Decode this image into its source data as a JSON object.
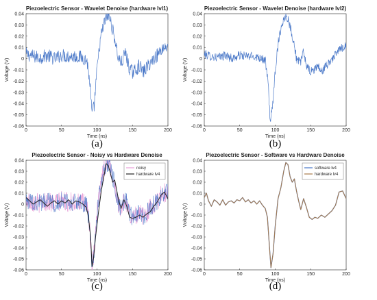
{
  "chart_data": [
    {
      "panel_label": "(a)",
      "type": "line",
      "title": "Piezoelectric Sensor - Wavelet Denoise (hardware lvl1)",
      "xlabel": "Time (ns)",
      "ylabel": "Voltage (V)",
      "xlim": [
        0,
        200
      ],
      "ylim": [
        -0.06,
        0.04
      ],
      "xticks": [
        0,
        50,
        100,
        150,
        200
      ],
      "yticks": [
        -0.06,
        -0.05,
        -0.04,
        -0.03,
        -0.02,
        -0.01,
        0,
        0.01,
        0.02,
        0.03,
        0.04
      ],
      "grid": false,
      "legend": null,
      "series": [
        {
          "noise": 0.006,
          "style": "noisy",
          "color": "#4a78c8",
          "x": [
            0,
            10,
            20,
            30,
            40,
            50,
            60,
            70,
            80,
            86,
            90,
            93,
            96,
            100,
            105,
            110,
            115,
            118,
            122,
            126,
            130,
            135,
            140,
            145,
            150,
            155,
            160,
            165,
            170,
            175,
            180,
            185,
            190,
            195,
            200
          ],
          "y": [
            0.004,
            0.002,
            0.001,
            0.003,
            0.0,
            0.003,
            0.002,
            0.002,
            0.001,
            -0.002,
            -0.022,
            -0.05,
            -0.042,
            -0.01,
            0.018,
            0.032,
            0.038,
            0.036,
            0.026,
            0.015,
            0.0,
            -0.004,
            0.006,
            -0.008,
            -0.012,
            -0.01,
            -0.006,
            -0.012,
            -0.008,
            -0.004,
            0.0,
            0.003,
            0.008,
            0.01,
            0.012
          ]
        }
      ]
    },
    {
      "panel_label": "(b)",
      "type": "line",
      "title": "Piezoelectric Sensor - Wavelet Denoise (hardware lvl2)",
      "xlabel": "Time (ns)",
      "ylabel": "Voltage (V)",
      "xlim": [
        0,
        200
      ],
      "ylim": [
        -0.06,
        0.04
      ],
      "xticks": [
        0,
        50,
        100,
        150,
        200
      ],
      "yticks": [
        -0.06,
        -0.05,
        -0.04,
        -0.03,
        -0.02,
        -0.01,
        0,
        0.01,
        0.02,
        0.03,
        0.04
      ],
      "grid": false,
      "legend": null,
      "series": [
        {
          "noise": 0.004,
          "style": "noisy",
          "color": "#4a78c8",
          "x": [
            0,
            10,
            20,
            30,
            40,
            50,
            60,
            70,
            80,
            86,
            90,
            93,
            96,
            100,
            105,
            110,
            115,
            118,
            122,
            126,
            130,
            135,
            140,
            145,
            150,
            155,
            160,
            165,
            170,
            175,
            180,
            185,
            190,
            195,
            200
          ],
          "y": [
            0.004,
            0.002,
            0.001,
            0.003,
            0.0,
            0.003,
            0.002,
            0.002,
            0.001,
            -0.002,
            -0.022,
            -0.055,
            -0.045,
            -0.01,
            0.018,
            0.032,
            0.038,
            0.036,
            0.026,
            0.015,
            0.0,
            -0.004,
            0.006,
            -0.008,
            -0.012,
            -0.01,
            -0.006,
            -0.012,
            -0.008,
            -0.004,
            0.0,
            0.003,
            0.008,
            0.01,
            0.012
          ]
        }
      ]
    },
    {
      "panel_label": "(c)",
      "type": "line",
      "title": "Piezoelectric Sensor - Noisy vs Hardware Denoise",
      "xlabel": "Time (ns)",
      "ylabel": "Voltage (V)",
      "xlim": [
        0,
        200
      ],
      "ylim": [
        -0.06,
        0.04
      ],
      "xticks": [
        0,
        50,
        100,
        150,
        200
      ],
      "yticks": [
        -0.06,
        -0.05,
        -0.04,
        -0.03,
        -0.02,
        -0.01,
        0,
        0.01,
        0.02,
        0.03,
        0.04
      ],
      "grid": false,
      "legend": "top-right",
      "series": [
        {
          "name": "noisy",
          "noise": 0.009,
          "style": "noisy",
          "color": "#e8a0d8",
          "overlay_color": "#4a78c8",
          "x": [
            0,
            10,
            20,
            30,
            40,
            50,
            60,
            70,
            80,
            86,
            90,
            93,
            96,
            100,
            105,
            110,
            115,
            118,
            122,
            126,
            130,
            135,
            140,
            145,
            150,
            155,
            160,
            165,
            170,
            175,
            180,
            185,
            190,
            195,
            200
          ],
          "y": [
            0.004,
            0.002,
            0.001,
            0.003,
            0.0,
            0.003,
            0.002,
            0.002,
            0.001,
            -0.002,
            -0.022,
            -0.058,
            -0.045,
            -0.01,
            0.018,
            0.032,
            0.038,
            0.036,
            0.026,
            0.015,
            0.0,
            -0.004,
            0.006,
            -0.008,
            -0.012,
            -0.01,
            -0.006,
            -0.012,
            -0.008,
            -0.004,
            0.0,
            0.003,
            0.008,
            0.01,
            0.012
          ]
        },
        {
          "name": "hardware lv4",
          "style": "smooth",
          "color": "#222222",
          "x": [
            0,
            5,
            10,
            15,
            20,
            25,
            30,
            35,
            40,
            45,
            50,
            55,
            60,
            65,
            70,
            75,
            80,
            85,
            88,
            91,
            93,
            95,
            98,
            102,
            106,
            110,
            113,
            116,
            119,
            122,
            125,
            128,
            131,
            134,
            138,
            142,
            146,
            150,
            155,
            160,
            165,
            170,
            175,
            180,
            185,
            190,
            195,
            200
          ],
          "y": [
            0.006,
            0.003,
            0.0,
            0.002,
            0.004,
            0.001,
            -0.002,
            0.001,
            0.003,
            0.0,
            0.003,
            0.001,
            0.004,
            0.0,
            0.003,
            0.002,
            0.0,
            -0.003,
            -0.012,
            -0.03,
            -0.057,
            -0.05,
            -0.03,
            -0.008,
            0.012,
            0.026,
            0.037,
            0.035,
            0.028,
            0.02,
            0.022,
            0.012,
            0.002,
            -0.004,
            0.004,
            -0.002,
            -0.012,
            -0.013,
            -0.012,
            -0.01,
            -0.012,
            -0.009,
            -0.007,
            -0.002,
            0.002,
            0.008,
            0.011,
            0.005
          ]
        }
      ]
    },
    {
      "panel_label": "(d)",
      "type": "line",
      "title": "Piezoelectric Sensor - Software vs Hardware Denoise",
      "xlabel": "Time (ns)",
      "ylabel": "Voltage (V)",
      "xlim": [
        0,
        200
      ],
      "ylim": [
        -0.06,
        0.04
      ],
      "xticks": [
        0,
        50,
        100,
        150,
        200
      ],
      "yticks": [
        -0.06,
        -0.05,
        -0.04,
        -0.03,
        -0.02,
        -0.01,
        0,
        0.01,
        0.02,
        0.03,
        0.04
      ],
      "grid": false,
      "legend": "top-right",
      "series": [
        {
          "name": "software lv4",
          "style": "smooth",
          "color": "#4a78c8",
          "x": [
            0,
            3,
            6,
            10,
            14,
            18,
            22,
            26,
            30,
            34,
            38,
            42,
            46,
            50,
            54,
            58,
            62,
            66,
            70,
            74,
            78,
            82,
            86,
            89,
            92,
            94,
            97,
            100,
            104,
            108,
            112,
            115,
            118,
            121,
            124,
            127,
            130,
            133,
            136,
            140,
            144,
            148,
            152,
            156,
            160,
            165,
            170,
            175,
            180,
            185,
            190,
            195,
            200
          ],
          "y": [
            0.006,
            0.01,
            0.003,
            -0.002,
            0.004,
            0.002,
            -0.001,
            0.004,
            -0.001,
            0.002,
            0.003,
            0.001,
            0.004,
            0.003,
            0.006,
            0.002,
            0.004,
            0.001,
            0.003,
            0.0,
            0.003,
            -0.001,
            -0.004,
            -0.012,
            -0.04,
            -0.058,
            -0.045,
            -0.02,
            0.005,
            0.015,
            0.03,
            0.038,
            0.036,
            0.025,
            0.02,
            0.023,
            0.012,
            0.003,
            -0.005,
            0.005,
            -0.003,
            -0.012,
            -0.014,
            -0.012,
            -0.013,
            -0.01,
            -0.012,
            -0.009,
            -0.006,
            -0.001,
            0.011,
            0.012,
            0.005
          ]
        },
        {
          "name": "hardware lv4",
          "style": "smooth",
          "color": "#a87a4a",
          "x": [
            0,
            3,
            6,
            10,
            14,
            18,
            22,
            26,
            30,
            34,
            38,
            42,
            46,
            50,
            54,
            58,
            62,
            66,
            70,
            74,
            78,
            82,
            86,
            89,
            92,
            94,
            97,
            100,
            104,
            108,
            112,
            115,
            118,
            121,
            124,
            127,
            130,
            133,
            136,
            140,
            144,
            148,
            152,
            156,
            160,
            165,
            170,
            175,
            180,
            185,
            190,
            195,
            200
          ],
          "y": [
            0.006,
            0.01,
            0.003,
            -0.002,
            0.004,
            0.002,
            -0.001,
            0.004,
            -0.001,
            0.002,
            0.003,
            0.001,
            0.004,
            0.003,
            0.006,
            0.002,
            0.004,
            0.001,
            0.003,
            0.0,
            0.003,
            -0.001,
            -0.004,
            -0.012,
            -0.04,
            -0.058,
            -0.045,
            -0.02,
            0.005,
            0.015,
            0.03,
            0.038,
            0.036,
            0.025,
            0.02,
            0.023,
            0.012,
            0.003,
            -0.005,
            0.005,
            -0.003,
            -0.012,
            -0.014,
            -0.012,
            -0.013,
            -0.01,
            -0.012,
            -0.009,
            -0.006,
            -0.001,
            0.011,
            0.012,
            0.005
          ]
        }
      ]
    }
  ]
}
